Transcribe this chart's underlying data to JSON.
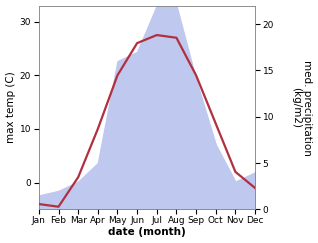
{
  "months": [
    "Jan",
    "Feb",
    "Mar",
    "Apr",
    "May",
    "Jun",
    "Jul",
    "Aug",
    "Sep",
    "Oct",
    "Nov",
    "Dec"
  ],
  "month_indices": [
    1,
    2,
    3,
    4,
    5,
    6,
    7,
    8,
    9,
    10,
    11,
    12
  ],
  "temperature": [
    -4,
    -4.5,
    1,
    10,
    20,
    26,
    27.5,
    27,
    20,
    11,
    2,
    -1
  ],
  "precipitation": [
    1.5,
    2,
    3,
    5,
    16,
    17,
    22,
    22,
    14,
    7,
    3,
    4
  ],
  "temp_ylim": [
    -5,
    33
  ],
  "precip_ylim": [
    0,
    22
  ],
  "temp_yticks": [
    0,
    10,
    20,
    30
  ],
  "precip_yticks": [
    0,
    5,
    10,
    15,
    20
  ],
  "temp_color": "#b03040",
  "precip_fill_color": "#bfc8ee",
  "xlabel": "date (month)",
  "ylabel_left": "max temp (C)",
  "ylabel_right": "med. precipitation\n(kg/m2)",
  "bg_color": "#ffffff",
  "line_width": 1.6,
  "label_fontsize": 7.5,
  "tick_fontsize": 6.5
}
